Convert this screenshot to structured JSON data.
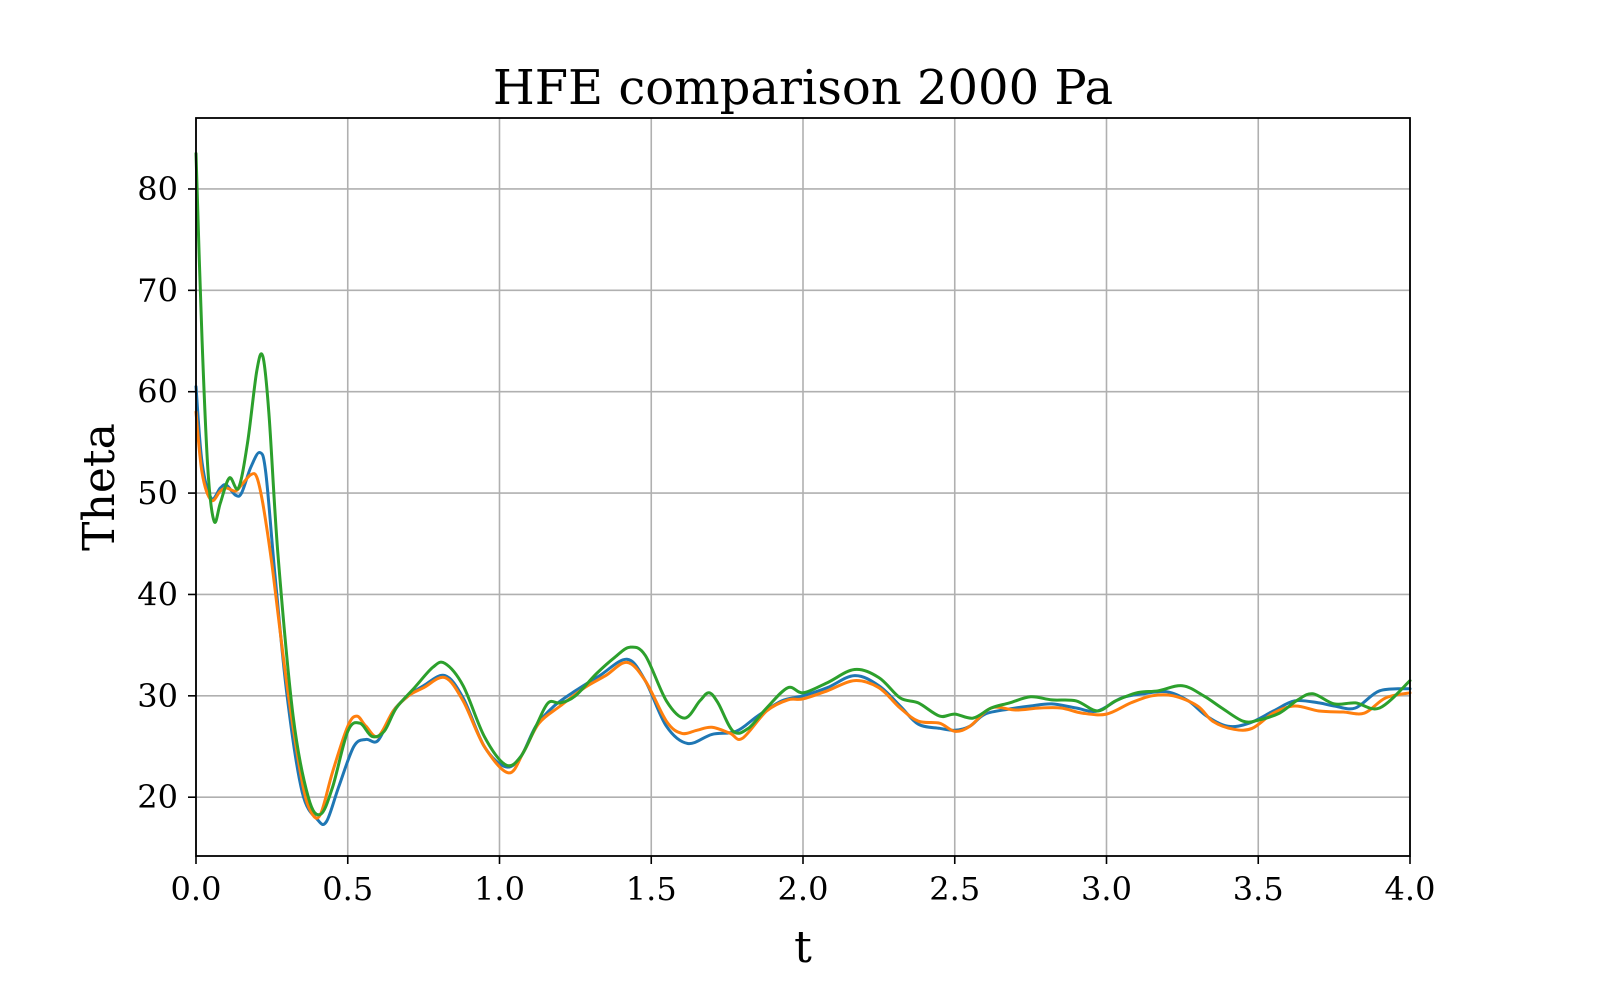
{
  "chart_data": {
    "type": "line",
    "title": "HFE comparison 2000 Pa",
    "xlabel": "t",
    "ylabel": "Theta",
    "xlim": [
      0,
      4
    ],
    "ylim": [
      14.2,
      87
    ],
    "xticks": [
      0.0,
      0.5,
      1.0,
      1.5,
      2.0,
      2.5,
      3.0,
      3.5,
      4.0
    ],
    "xtick_labels": [
      "0.0",
      "0.5",
      "1.0",
      "1.5",
      "2.0",
      "2.5",
      "3.0",
      "3.5",
      "4.0"
    ],
    "yticks": [
      20,
      30,
      40,
      50,
      60,
      70,
      80
    ],
    "ytick_labels": [
      "20",
      "30",
      "40",
      "50",
      "60",
      "70",
      "80"
    ],
    "grid": true,
    "legend": false,
    "series": [
      {
        "color": "#1f77b4",
        "x": [
          0.0,
          0.02,
          0.05,
          0.08,
          0.1,
          0.13,
          0.15,
          0.18,
          0.21,
          0.23,
          0.26,
          0.3,
          0.35,
          0.4,
          0.43,
          0.47,
          0.52,
          0.56,
          0.6,
          0.65,
          0.7,
          0.75,
          0.82,
          0.88,
          0.95,
          1.02,
          1.07,
          1.12,
          1.18,
          1.25,
          1.33,
          1.42,
          1.48,
          1.55,
          1.62,
          1.7,
          1.78,
          1.85,
          1.93,
          2.0,
          2.08,
          2.17,
          2.25,
          2.32,
          2.38,
          2.45,
          2.5,
          2.55,
          2.6,
          2.68,
          2.75,
          2.82,
          2.9,
          2.97,
          3.05,
          3.12,
          3.2,
          3.27,
          3.33,
          3.4,
          3.47,
          3.55,
          3.62,
          3.7,
          3.75,
          3.82,
          3.9,
          4.0
        ],
        "y": [
          60.5,
          53.0,
          49.5,
          50.5,
          50.8,
          49.8,
          50.0,
          52.5,
          54.0,
          52.0,
          42.0,
          30.0,
          20.5,
          17.8,
          17.6,
          21.0,
          25.0,
          25.7,
          25.6,
          28.5,
          30.0,
          31.0,
          32.0,
          29.8,
          25.0,
          23.0,
          24.0,
          27.0,
          29.0,
          30.5,
          32.0,
          33.6,
          31.5,
          27.0,
          25.3,
          26.2,
          26.5,
          28.0,
          29.5,
          30.0,
          30.8,
          32.0,
          31.0,
          29.0,
          27.2,
          26.8,
          26.6,
          27.0,
          28.2,
          28.7,
          29.0,
          29.2,
          28.8,
          28.5,
          29.8,
          30.2,
          30.4,
          29.5,
          28.0,
          27.0,
          27.3,
          28.5,
          29.5,
          29.3,
          29.0,
          28.8,
          30.5,
          30.7
        ]
      },
      {
        "color": "#ff7f0e",
        "x": [
          0.0,
          0.02,
          0.05,
          0.08,
          0.1,
          0.13,
          0.15,
          0.18,
          0.2,
          0.22,
          0.25,
          0.3,
          0.35,
          0.38,
          0.41,
          0.45,
          0.5,
          0.53,
          0.56,
          0.6,
          0.65,
          0.7,
          0.75,
          0.82,
          0.88,
          0.95,
          1.03,
          1.08,
          1.13,
          1.2,
          1.28,
          1.35,
          1.42,
          1.48,
          1.55,
          1.6,
          1.65,
          1.7,
          1.76,
          1.8,
          1.88,
          1.95,
          2.0,
          2.08,
          2.17,
          2.25,
          2.32,
          2.38,
          2.45,
          2.5,
          2.55,
          2.62,
          2.7,
          2.78,
          2.85,
          2.92,
          3.0,
          3.08,
          3.15,
          3.22,
          3.3,
          3.35,
          3.42,
          3.48,
          3.55,
          3.62,
          3.7,
          3.78,
          3.85,
          3.92,
          4.0
        ],
        "y": [
          58.0,
          52.0,
          49.3,
          50.2,
          50.5,
          50.2,
          50.8,
          51.8,
          51.6,
          49.0,
          43.0,
          31.0,
          21.5,
          18.5,
          18.3,
          22.5,
          27.0,
          28.0,
          27.0,
          26.0,
          28.5,
          30.0,
          30.8,
          31.8,
          29.5,
          25.0,
          22.4,
          24.5,
          27.3,
          29.0,
          30.8,
          32.0,
          33.3,
          31.5,
          27.5,
          26.3,
          26.6,
          26.9,
          26.3,
          25.8,
          28.5,
          29.6,
          29.7,
          30.5,
          31.5,
          30.8,
          28.8,
          27.5,
          27.3,
          26.5,
          27.0,
          28.8,
          28.6,
          28.8,
          28.8,
          28.3,
          28.2,
          29.3,
          30.0,
          30.0,
          29.0,
          27.5,
          26.7,
          26.8,
          28.3,
          29.0,
          28.5,
          28.4,
          28.3,
          29.8,
          30.3
        ]
      },
      {
        "color": "#2ca02c",
        "x": [
          0.0,
          0.02,
          0.04,
          0.06,
          0.08,
          0.11,
          0.14,
          0.17,
          0.2,
          0.22,
          0.24,
          0.27,
          0.32,
          0.37,
          0.41,
          0.45,
          0.5,
          0.54,
          0.58,
          0.62,
          0.66,
          0.72,
          0.78,
          0.82,
          0.88,
          0.95,
          1.02,
          1.07,
          1.12,
          1.16,
          1.2,
          1.25,
          1.32,
          1.38,
          1.43,
          1.48,
          1.55,
          1.61,
          1.66,
          1.69,
          1.72,
          1.77,
          1.82,
          1.88,
          1.95,
          2.0,
          2.08,
          2.17,
          2.25,
          2.32,
          2.38,
          2.45,
          2.5,
          2.56,
          2.62,
          2.68,
          2.75,
          2.82,
          2.9,
          2.97,
          3.03,
          3.1,
          3.17,
          3.25,
          3.32,
          3.38,
          3.45,
          3.5,
          3.57,
          3.63,
          3.68,
          3.75,
          3.82,
          3.9,
          4.0
        ],
        "y": [
          83.5,
          65.0,
          52.0,
          47.2,
          49.0,
          51.5,
          50.5,
          55.0,
          62.0,
          63.5,
          58.0,
          44.0,
          28.0,
          20.0,
          18.3,
          21.0,
          26.5,
          27.3,
          26.0,
          26.5,
          28.8,
          30.8,
          32.8,
          33.2,
          31.0,
          26.0,
          23.2,
          24.0,
          27.0,
          29.3,
          29.3,
          30.0,
          32.2,
          33.8,
          34.8,
          34.0,
          29.5,
          27.8,
          29.5,
          30.3,
          29.3,
          26.5,
          26.8,
          28.8,
          30.8,
          30.3,
          31.3,
          32.6,
          31.8,
          29.8,
          29.3,
          28.0,
          28.2,
          27.8,
          28.8,
          29.3,
          29.9,
          29.6,
          29.5,
          28.5,
          29.5,
          30.3,
          30.5,
          31.0,
          30.0,
          28.8,
          27.5,
          27.6,
          28.3,
          29.6,
          30.2,
          29.2,
          29.3,
          28.8,
          31.5
        ]
      }
    ]
  }
}
